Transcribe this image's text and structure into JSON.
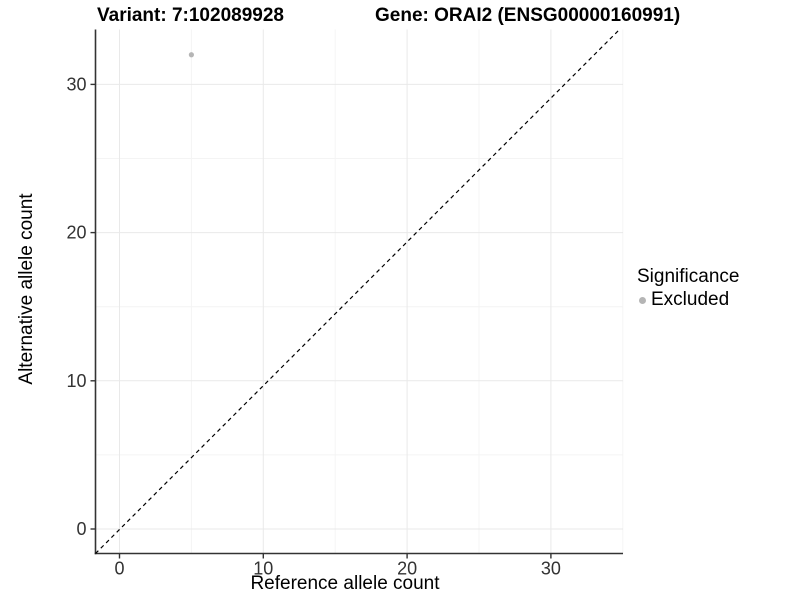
{
  "figure": {
    "titles": {
      "variant": "Variant: 7:102089928",
      "gene": "Gene: ORAI2 (ENSG00000160991)"
    },
    "colors": {
      "background": "#ffffff",
      "axis_line": "#333333",
      "grid_major": "#e9e9e9",
      "grid_minor": "#f4f4f4",
      "tick_label": "#333333",
      "point": "#b5b5b5",
      "identity_line": "#000000"
    }
  },
  "legend": {
    "title": "Significance",
    "items": [
      {
        "label": "Excluded",
        "color": "#b5b5b5",
        "marker": "circle-icon"
      }
    ]
  },
  "chart_data": {
    "type": "scatter",
    "title": "Variant: 7:102089928   Gene: ORAI2 (ENSG00000160991)",
    "xlabel": "Reference allele count",
    "ylabel": "Alternative allele count",
    "xlim": [
      -1.7,
      35
    ],
    "ylim": [
      -1.7,
      33.8
    ],
    "x_major_ticks": [
      0,
      10,
      20,
      30
    ],
    "y_major_ticks": [
      0,
      10,
      20,
      30
    ],
    "x_minor_gridlines": [
      5,
      15,
      25,
      35
    ],
    "y_minor_gridlines": [
      5,
      15,
      25
    ],
    "grid": true,
    "legend_position": "right",
    "series": [
      {
        "name": "Excluded",
        "color": "#b5b5b5",
        "points": [
          {
            "x": 5,
            "y": 32
          }
        ]
      }
    ],
    "reference_line": {
      "type": "identity",
      "slope": 1,
      "intercept": 0,
      "style": "dashed",
      "color": "#000000"
    }
  }
}
